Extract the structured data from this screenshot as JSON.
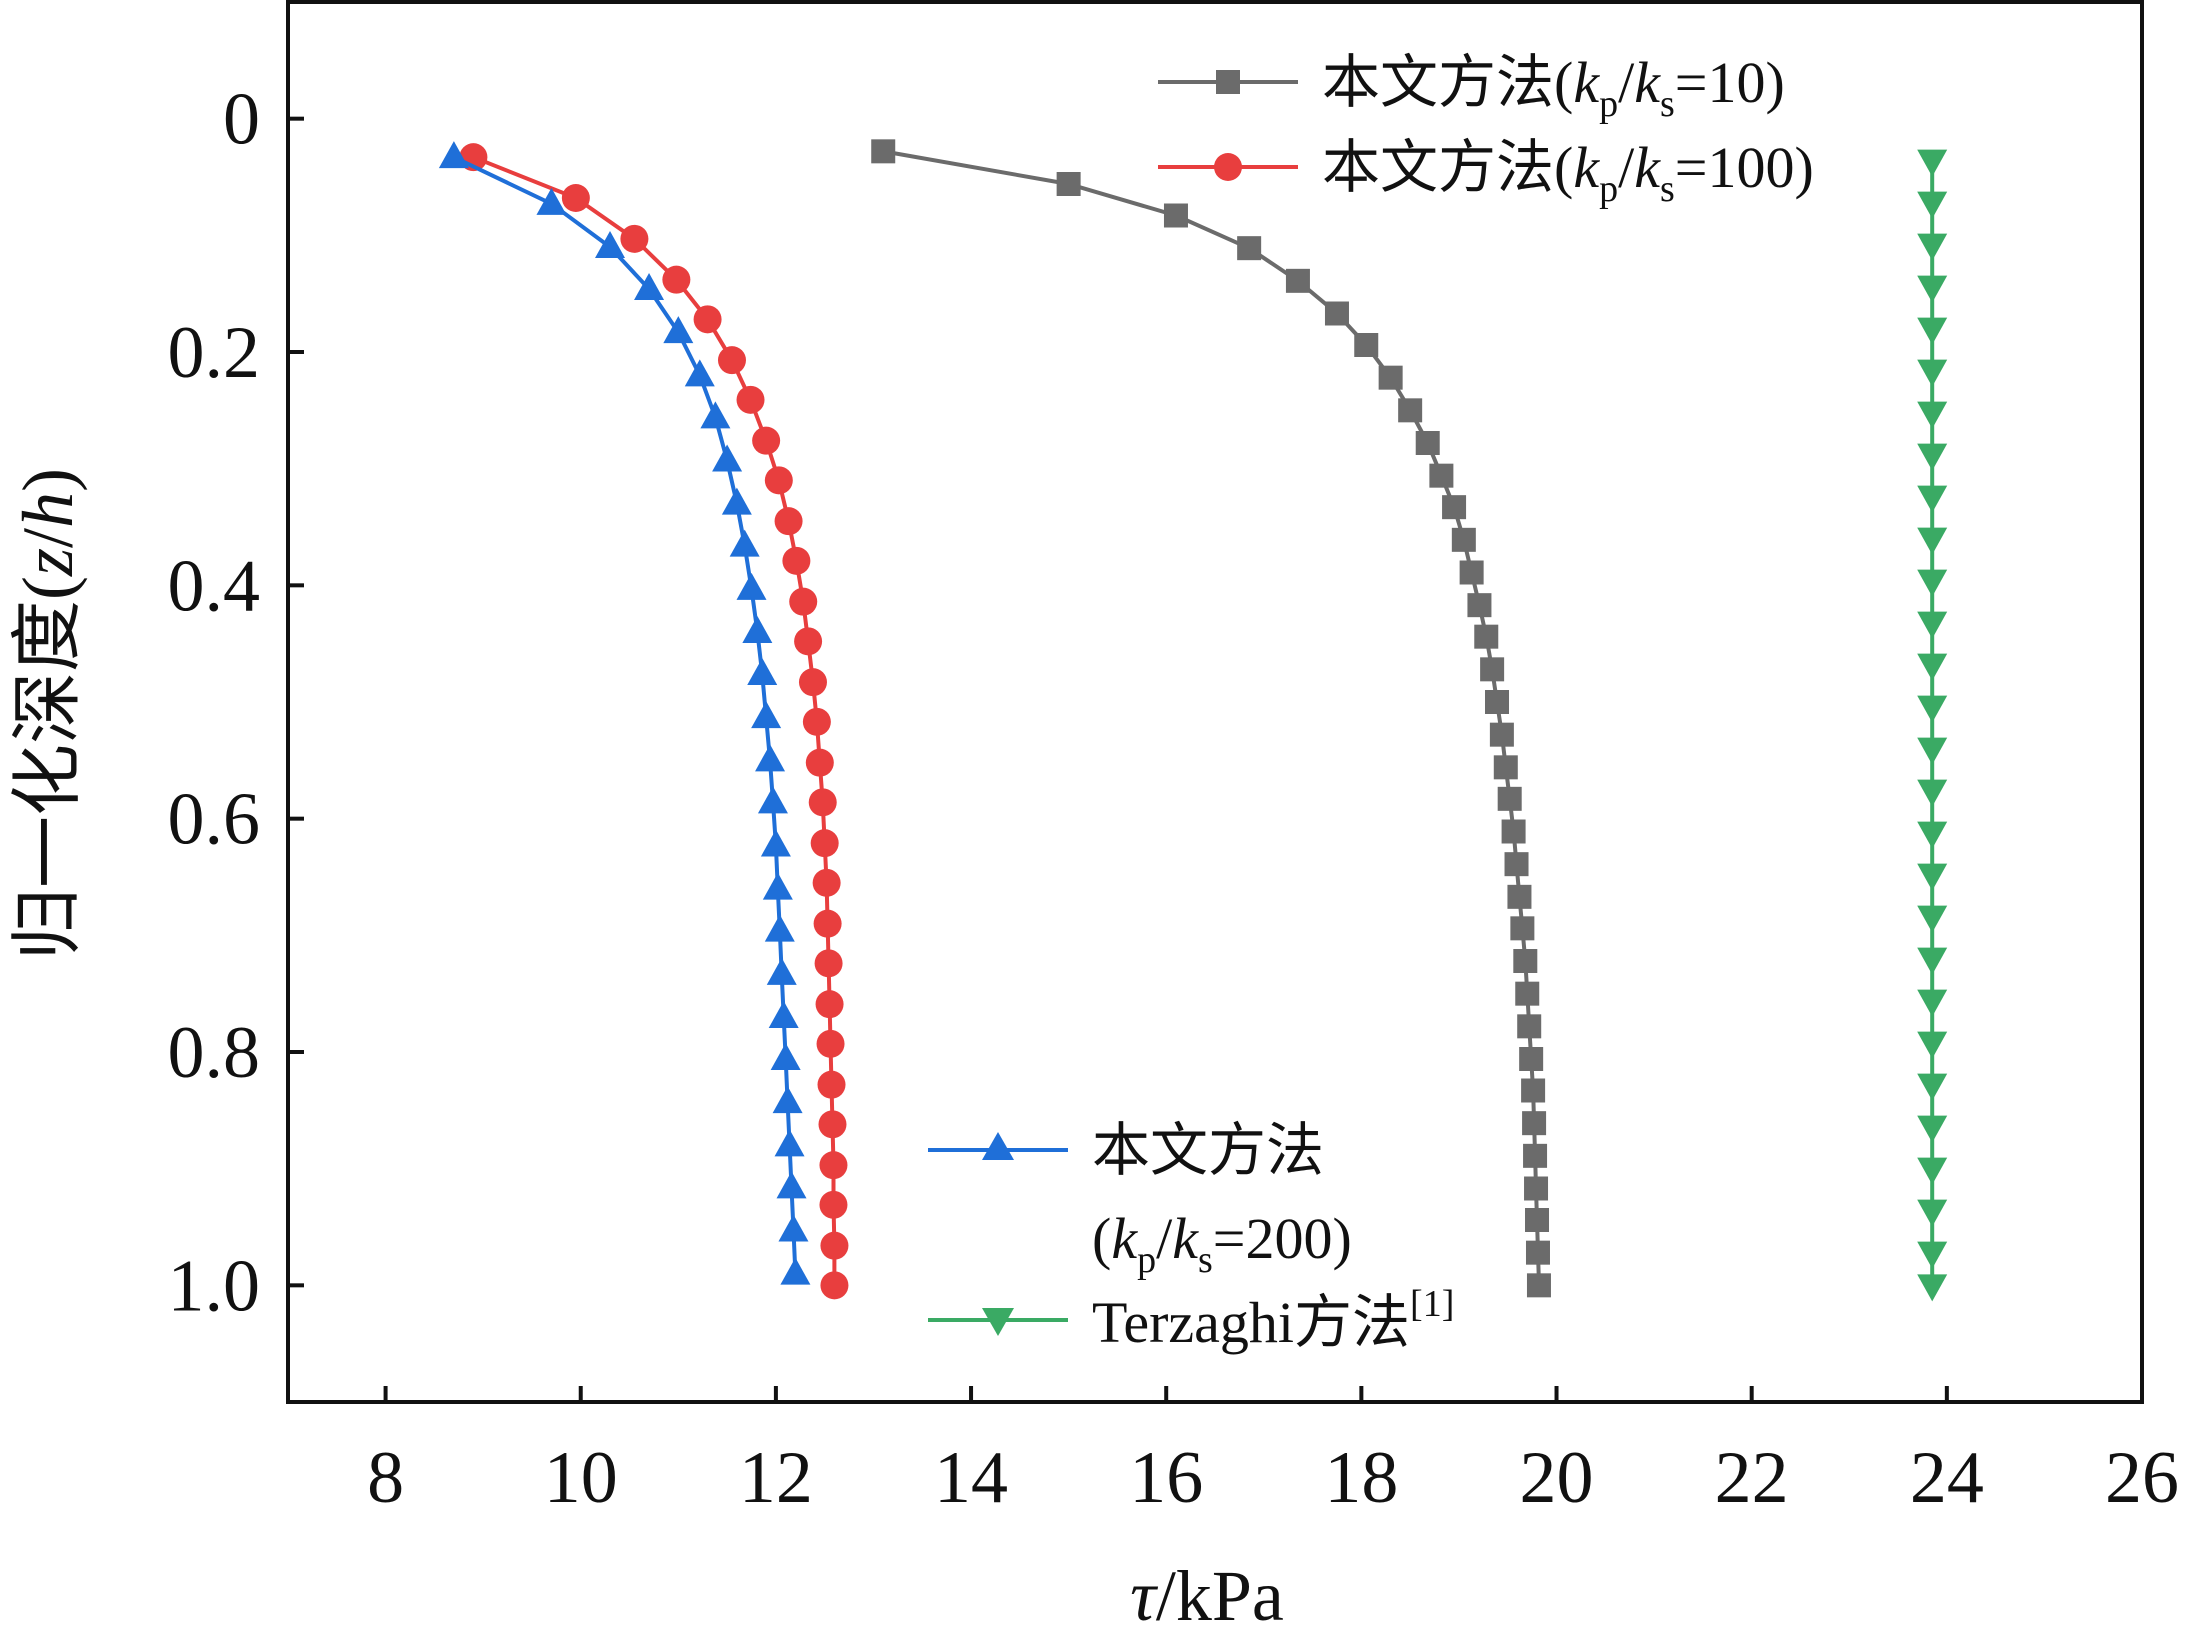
{
  "chart_data": {
    "type": "line",
    "xlabel": {
      "symbol": "τ",
      "rest": "/kPa"
    },
    "ylabel": {
      "prefix": "归一化深度(",
      "var1": "z",
      "slash": "/",
      "var2": "h",
      "suffix": ")"
    },
    "xlim": [
      7,
      26
    ],
    "ylim": [
      1.1,
      -0.1
    ],
    "y_inverted": true,
    "xticks": [
      8,
      10,
      12,
      14,
      16,
      18,
      20,
      22,
      24,
      26
    ],
    "xtick_labels": [
      "8",
      "10",
      "12",
      "14",
      "16",
      "18",
      "20",
      "22",
      "24",
      "26"
    ],
    "yticks": [
      0,
      0.2,
      0.4,
      0.6,
      0.8,
      1.0
    ],
    "ytick_labels": [
      "0",
      "0.2",
      "0.4",
      "0.6",
      "0.8",
      "1.0"
    ],
    "grid": false,
    "series": [
      {
        "name": "本文方法(kp/ks=10)",
        "legend": {
          "prefix": "本文方法(",
          "k1": "k",
          "s1": "p",
          "slash": "/",
          "k2": "k",
          "s2": "s",
          "rest": "=10)"
        },
        "color": "#6b6b6b",
        "marker": "square",
        "points": [
          [
            13.1,
            0.028
          ],
          [
            15.0,
            0.056
          ],
          [
            16.1,
            0.083
          ],
          [
            16.85,
            0.111
          ],
          [
            17.35,
            0.139
          ],
          [
            17.75,
            0.167
          ],
          [
            18.05,
            0.194
          ],
          [
            18.3,
            0.222
          ],
          [
            18.5,
            0.25
          ],
          [
            18.68,
            0.278
          ],
          [
            18.82,
            0.306
          ],
          [
            18.95,
            0.333
          ],
          [
            19.05,
            0.361
          ],
          [
            19.13,
            0.389
          ],
          [
            19.21,
            0.417
          ],
          [
            19.28,
            0.444
          ],
          [
            19.34,
            0.472
          ],
          [
            19.39,
            0.5
          ],
          [
            19.44,
            0.528
          ],
          [
            19.48,
            0.556
          ],
          [
            19.52,
            0.583
          ],
          [
            19.56,
            0.611
          ],
          [
            19.59,
            0.639
          ],
          [
            19.62,
            0.667
          ],
          [
            19.65,
            0.694
          ],
          [
            19.68,
            0.722
          ],
          [
            19.7,
            0.75
          ],
          [
            19.72,
            0.778
          ],
          [
            19.74,
            0.806
          ],
          [
            19.76,
            0.833
          ],
          [
            19.77,
            0.861
          ],
          [
            19.78,
            0.889
          ],
          [
            19.79,
            0.917
          ],
          [
            19.8,
            0.944
          ],
          [
            19.81,
            0.972
          ],
          [
            19.82,
            1.0
          ]
        ]
      },
      {
        "name": "本文方法(kp/ks=100)",
        "legend": {
          "prefix": "本文方法(",
          "k1": "k",
          "s1": "p",
          "slash": "/",
          "k2": "k",
          "s2": "s",
          "rest": "=100)"
        },
        "color": "#e83e3e",
        "marker": "circle",
        "points": [
          [
            8.9,
            0.033
          ],
          [
            9.95,
            0.068
          ],
          [
            10.55,
            0.103
          ],
          [
            10.98,
            0.138
          ],
          [
            11.3,
            0.172
          ],
          [
            11.55,
            0.207
          ],
          [
            11.74,
            0.241
          ],
          [
            11.9,
            0.276
          ],
          [
            12.03,
            0.31
          ],
          [
            12.13,
            0.345
          ],
          [
            12.21,
            0.379
          ],
          [
            12.28,
            0.414
          ],
          [
            12.33,
            0.448
          ],
          [
            12.38,
            0.483
          ],
          [
            12.42,
            0.517
          ],
          [
            12.45,
            0.552
          ],
          [
            12.48,
            0.586
          ],
          [
            12.5,
            0.621
          ],
          [
            12.52,
            0.655
          ],
          [
            12.53,
            0.69
          ],
          [
            12.54,
            0.724
          ],
          [
            12.55,
            0.759
          ],
          [
            12.56,
            0.793
          ],
          [
            12.57,
            0.828
          ],
          [
            12.58,
            0.862
          ],
          [
            12.59,
            0.897
          ],
          [
            12.59,
            0.931
          ],
          [
            12.6,
            0.966
          ],
          [
            12.6,
            1.0
          ]
        ]
      },
      {
        "name": "本文方法(kp/ks=200)",
        "legend": {
          "line1": "本文方法",
          "prefix": "(",
          "k1": "k",
          "s1": "p",
          "slash": "/",
          "k2": "k",
          "s2": "s",
          "rest": "=200)"
        },
        "color": "#1f6fd8",
        "marker": "triangle-up",
        "points": [
          [
            8.7,
            0.033
          ],
          [
            9.7,
            0.073
          ],
          [
            10.3,
            0.11
          ],
          [
            10.7,
            0.146
          ],
          [
            11.0,
            0.183
          ],
          [
            11.22,
            0.22
          ],
          [
            11.38,
            0.256
          ],
          [
            11.5,
            0.293
          ],
          [
            11.6,
            0.33
          ],
          [
            11.68,
            0.366
          ],
          [
            11.75,
            0.403
          ],
          [
            11.81,
            0.44
          ],
          [
            11.86,
            0.476
          ],
          [
            11.9,
            0.513
          ],
          [
            11.94,
            0.55
          ],
          [
            11.97,
            0.586
          ],
          [
            12.0,
            0.623
          ],
          [
            12.02,
            0.66
          ],
          [
            12.04,
            0.696
          ],
          [
            12.06,
            0.733
          ],
          [
            12.08,
            0.77
          ],
          [
            12.1,
            0.806
          ],
          [
            12.12,
            0.843
          ],
          [
            12.14,
            0.88
          ],
          [
            12.16,
            0.916
          ],
          [
            12.18,
            0.953
          ],
          [
            12.2,
            0.99
          ]
        ]
      },
      {
        "name": "Terzaghi方法[1]",
        "legend": {
          "text": "Terzaghi方法",
          "sup": "[1]"
        },
        "color": "#3aaa64",
        "marker": "triangle-down",
        "points": [
          [
            23.85,
            0.036
          ],
          [
            23.85,
            0.072
          ],
          [
            23.85,
            0.108
          ],
          [
            23.85,
            0.144
          ],
          [
            23.85,
            0.18
          ],
          [
            23.85,
            0.216
          ],
          [
            23.85,
            0.252
          ],
          [
            23.85,
            0.288
          ],
          [
            23.85,
            0.324
          ],
          [
            23.85,
            0.36
          ],
          [
            23.85,
            0.396
          ],
          [
            23.85,
            0.432
          ],
          [
            23.85,
            0.468
          ],
          [
            23.85,
            0.504
          ],
          [
            23.85,
            0.54
          ],
          [
            23.85,
            0.576
          ],
          [
            23.85,
            0.612
          ],
          [
            23.85,
            0.648
          ],
          [
            23.85,
            0.684
          ],
          [
            23.85,
            0.72
          ],
          [
            23.85,
            0.756
          ],
          [
            23.85,
            0.792
          ],
          [
            23.85,
            0.828
          ],
          [
            23.85,
            0.864
          ],
          [
            23.85,
            0.9
          ],
          [
            23.85,
            0.936
          ],
          [
            23.85,
            0.972
          ],
          [
            23.85,
            1.0
          ]
        ]
      }
    ]
  }
}
